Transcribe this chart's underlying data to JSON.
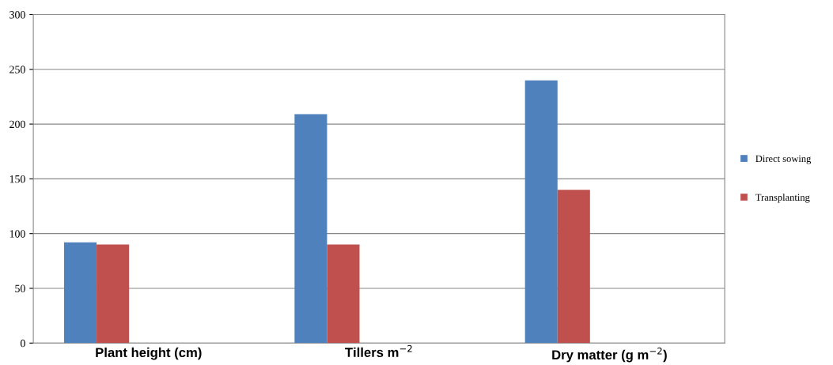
{
  "chart_data": {
    "type": "bar",
    "categories": [
      "Plant height (cm)",
      "Tillers m$^{−2}$",
      "Dry matter (g m$^{−2}$)"
    ],
    "series": [
      {
        "name": "Direct sowing",
        "color": "#4f81bd",
        "values": [
          92,
          209,
          240
        ]
      },
      {
        "name": "Transplanting",
        "color": "#c0504d",
        "values": [
          90,
          90,
          140
        ]
      }
    ],
    "ylim": [
      0,
      300
    ],
    "yticks": [
      0,
      50,
      100,
      150,
      200,
      250,
      300
    ],
    "grid": "y",
    "legend": "right"
  }
}
